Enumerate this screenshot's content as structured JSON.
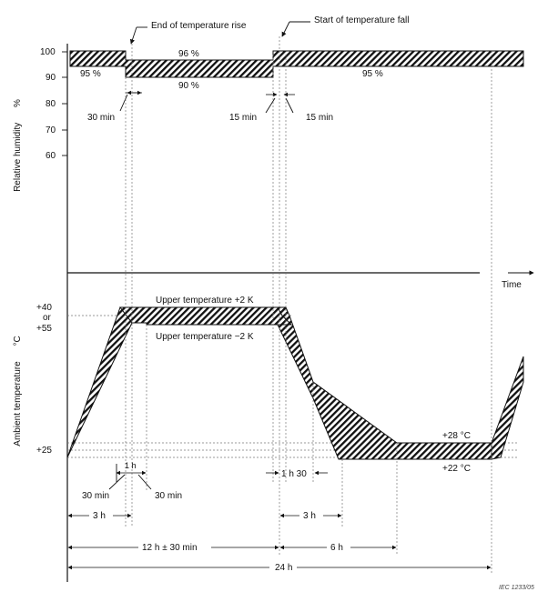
{
  "humidity": {
    "axis_title": "Relative humidity",
    "axis_unit": "%",
    "ticks": [
      "100",
      "90",
      "80",
      "70",
      "60"
    ],
    "band_labels": {
      "left_95": "95 %",
      "mid_96": "96 %",
      "mid_90": "90 %",
      "right_95": "95 %"
    }
  },
  "annotations": {
    "end_rise": "End of temperature rise",
    "start_fall": "Start of temperature fall",
    "min30": "30 min",
    "min15_left": "15 min",
    "min15_right": "15 min"
  },
  "time_label": "Time",
  "temperature": {
    "axis_title": "Ambient temperature",
    "axis_unit": "°C",
    "tick_top_1": "+40",
    "tick_top_or": "or",
    "tick_top_2": "+55",
    "tick_bottom": "+25",
    "upper_plus": "Upper temperature +2 K",
    "upper_minus": "Upper temperature −2 K",
    "plus28": "+28 °C",
    "plus22": "+22 °C"
  },
  "dimensions": {
    "h1": "1 h",
    "min30_a": "30 min",
    "min30_b": "30 min",
    "h1_30": "1 h 30",
    "h3_left": "3 h",
    "h3_right": "3 h",
    "h12": "12 h ± 30 min",
    "h6": "6 h",
    "h24": "24 h"
  },
  "figure_id": "IEC   1233/05"
}
